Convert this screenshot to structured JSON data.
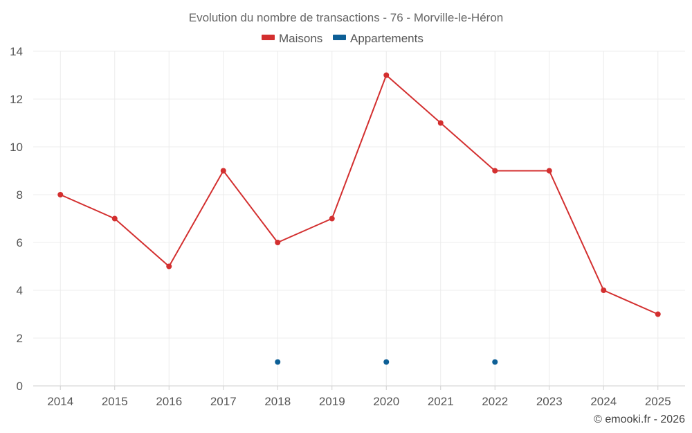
{
  "chart_data": {
    "type": "line",
    "title": "Evolution du nombre de transactions - 76 - Morville-le-Héron",
    "categories": [
      "2014",
      "2015",
      "2016",
      "2017",
      "2018",
      "2019",
      "2020",
      "2021",
      "2022",
      "2023",
      "2024",
      "2025"
    ],
    "ylim": [
      0,
      14
    ],
    "yticks": [
      0,
      2,
      4,
      6,
      8,
      10,
      12,
      14
    ],
    "grid": true,
    "legend_position": "top-center",
    "series": [
      {
        "name": "Maisons",
        "color": "#d32f2f",
        "values": [
          8,
          7,
          5,
          9,
          6,
          7,
          13,
          11,
          9,
          9,
          4,
          3
        ],
        "line": true
      },
      {
        "name": "Appartements",
        "color": "#0d5f96",
        "values": [
          null,
          null,
          null,
          null,
          1,
          null,
          1,
          null,
          1,
          null,
          null,
          null
        ],
        "line": false
      }
    ],
    "credit": "© emooki.fr - 2026"
  }
}
